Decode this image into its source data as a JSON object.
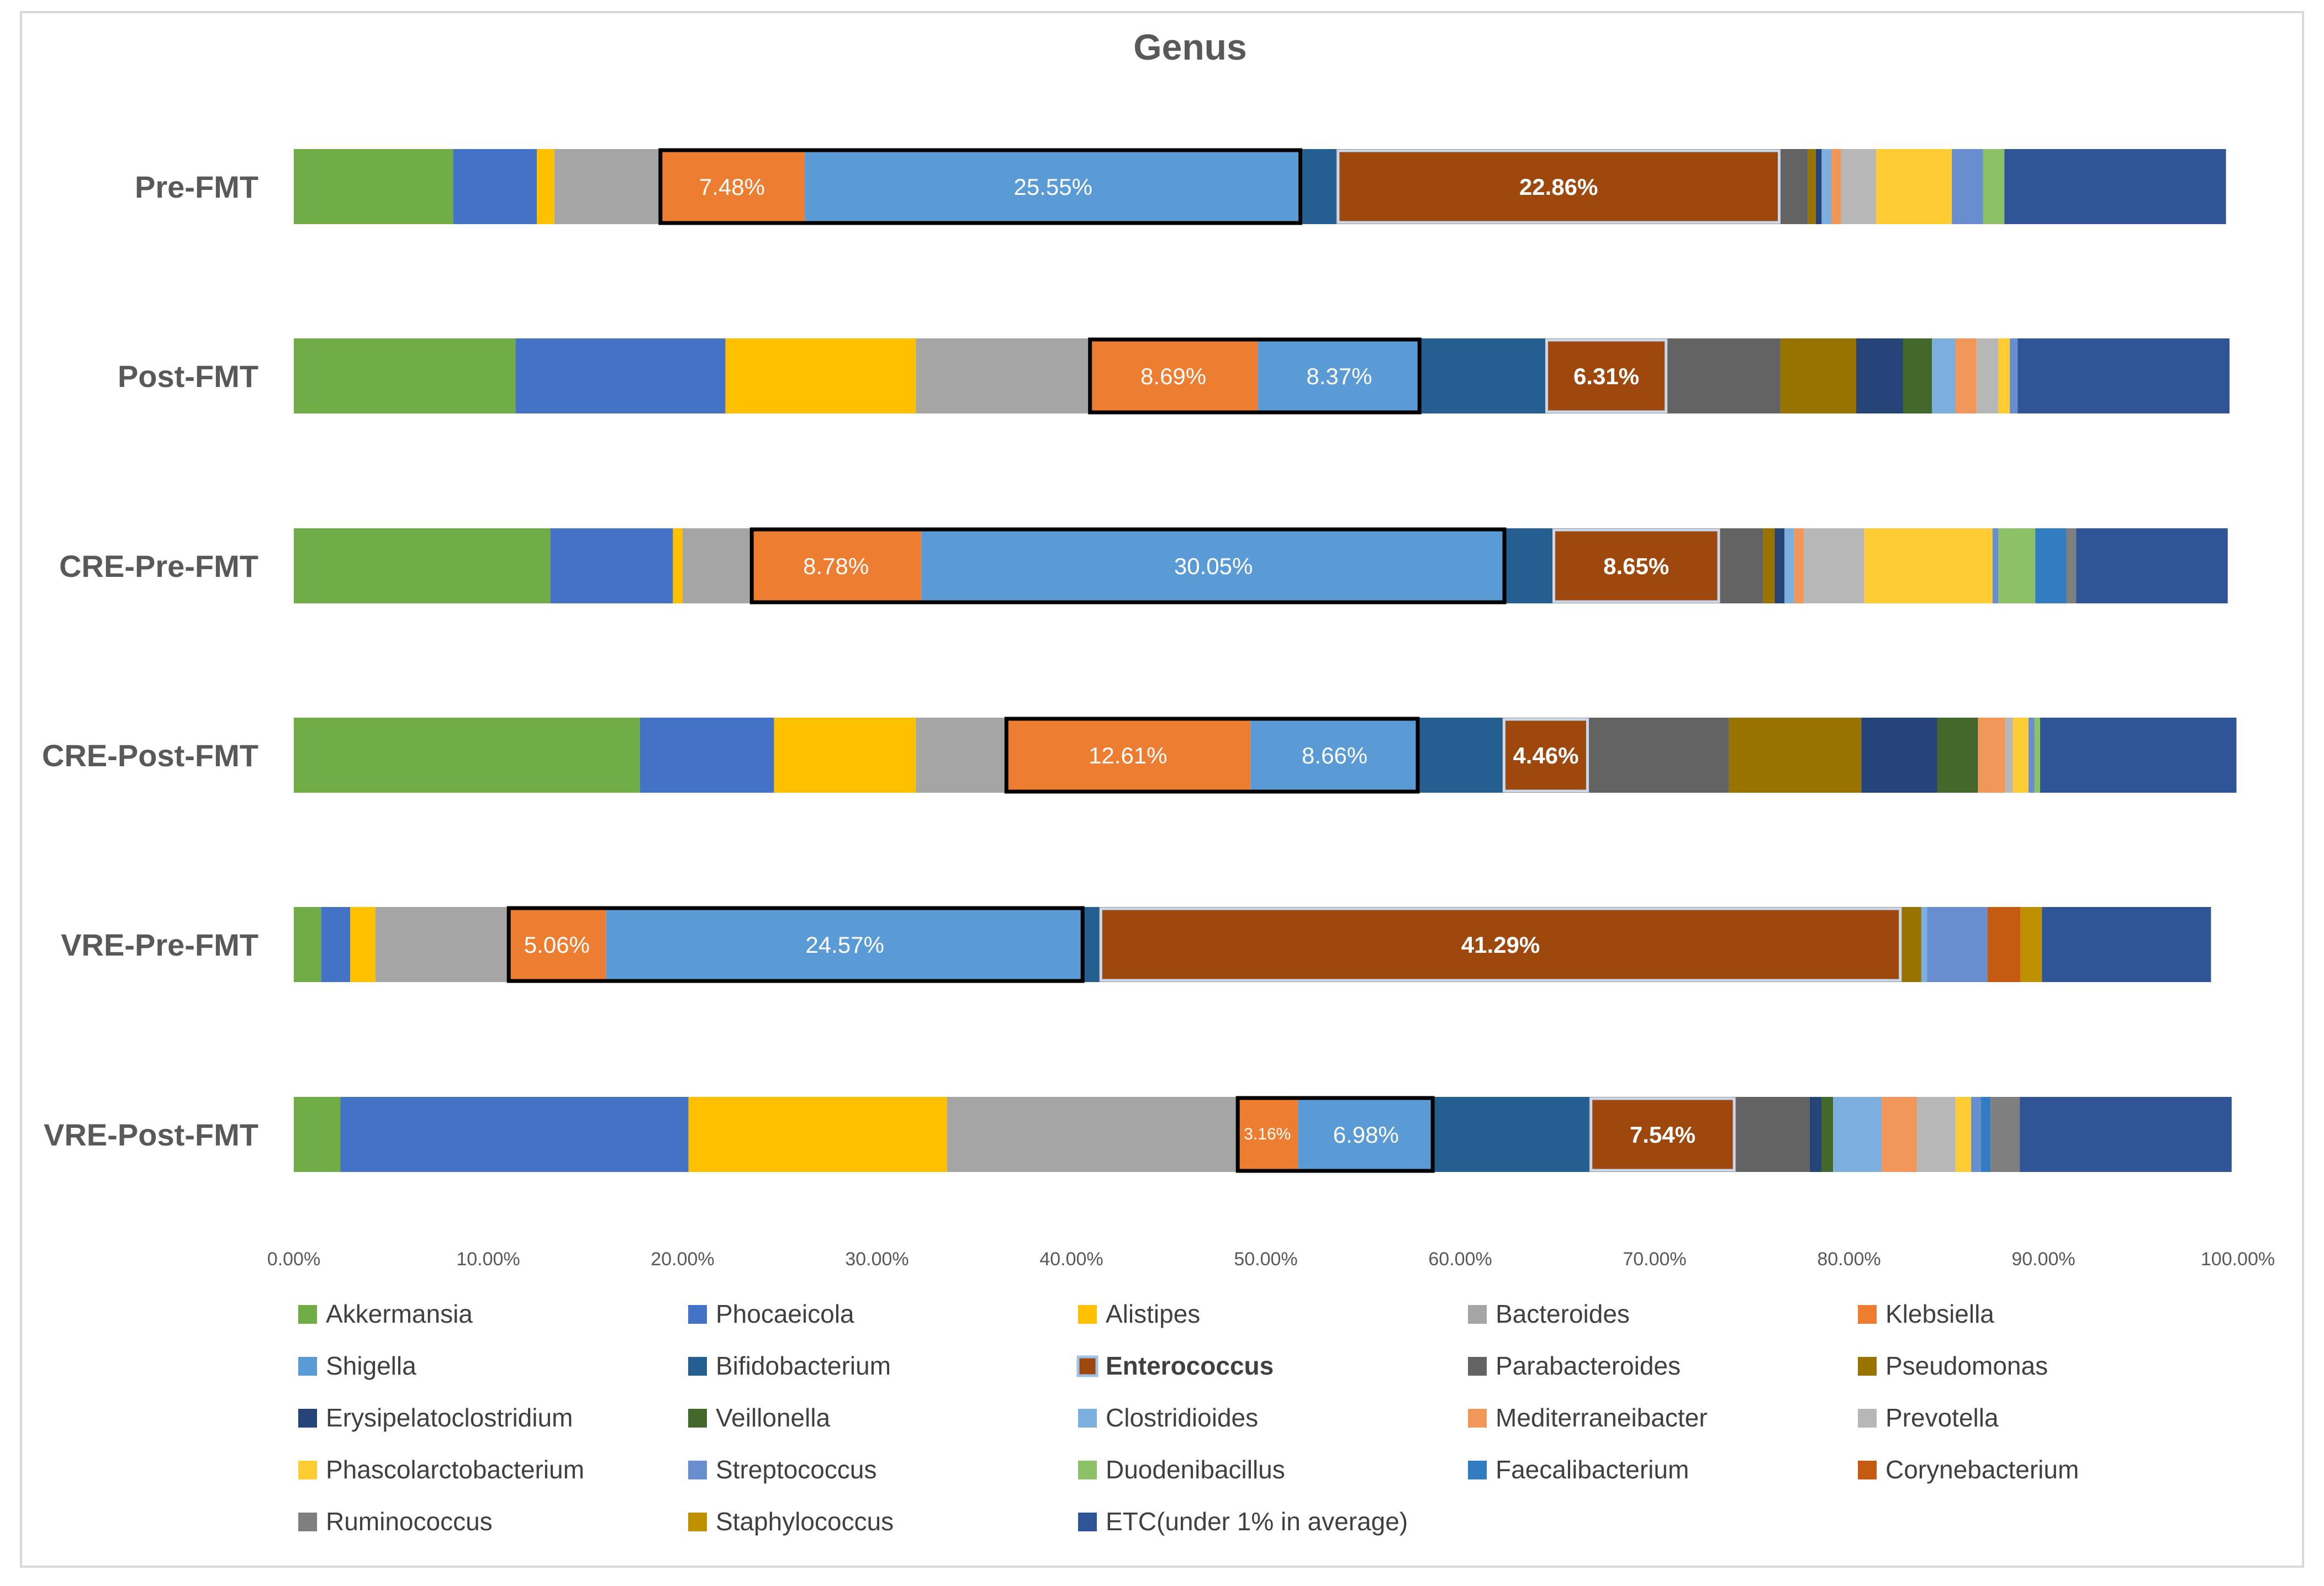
{
  "chart_data": {
    "type": "bar",
    "orientation": "horizontal",
    "stacked": true,
    "normalized": true,
    "title": "Genus",
    "xlabel": "",
    "ylabel": "",
    "xlim": [
      0,
      100
    ],
    "x_ticks": [
      "0.00%",
      "10.00%",
      "20.00%",
      "30.00%",
      "40.00%",
      "50.00%",
      "60.00%",
      "70.00%",
      "80.00%",
      "90.00%",
      "100.00%"
    ],
    "legend_position": "bottom",
    "highlighted_legend_entry": "Enterococcus",
    "categories": [
      "Pre-FMT",
      "Post-FMT",
      "CRE-Pre-FMT",
      "CRE-Post-FMT",
      "VRE-Pre-FMT",
      "VRE-Post-FMT"
    ],
    "series": [
      {
        "name": "Akkermansia",
        "color": "#70AD47",
        "values": [
          8.2,
          11.4,
          13.2,
          17.8,
          1.4,
          2.4
        ]
      },
      {
        "name": "Phocaeicola",
        "color": "#4472C4",
        "values": [
          4.3,
          10.8,
          6.3,
          6.9,
          1.5,
          17.9
        ]
      },
      {
        "name": "Alistipes",
        "color": "#FFC000",
        "values": [
          0.9,
          9.8,
          0.5,
          7.3,
          1.3,
          13.3
        ]
      },
      {
        "name": "Bacteroides",
        "color": "#A5A5A5",
        "values": [
          5.4,
          8.9,
          3.5,
          4.6,
          6.8,
          14.9
        ]
      },
      {
        "name": "Klebsiella",
        "color": "#ED7D31",
        "values": [
          7.48,
          8.69,
          8.78,
          12.61,
          5.06,
          3.16
        ]
      },
      {
        "name": "Shigella",
        "color": "#5B9BD5",
        "values": [
          25.55,
          8.37,
          30.05,
          8.66,
          24.57,
          6.98
        ]
      },
      {
        "name": "Bifidobacterium",
        "color": "#255E91",
        "values": [
          1.8,
          6.4,
          2.4,
          4.3,
          0.8,
          8.0
        ]
      },
      {
        "name": "Enterococcus",
        "color": "#9E480E",
        "values": [
          22.86,
          6.31,
          8.65,
          4.46,
          41.29,
          7.54
        ]
      },
      {
        "name": "Parabacteroides",
        "color": "#636363",
        "values": [
          1.4,
          5.8,
          2.2,
          7.2,
          0.0,
          3.8
        ]
      },
      {
        "name": "Pseudomonas",
        "color": "#997300",
        "values": [
          0.4,
          3.9,
          0.6,
          6.8,
          1.0,
          0.0
        ]
      },
      {
        "name": "Erysipelatoclostridium",
        "color": "#264478",
        "values": [
          0.3,
          2.4,
          0.5,
          3.9,
          0.0,
          0.6
        ]
      },
      {
        "name": "Veillonella",
        "color": "#43682B",
        "values": [
          0.0,
          1.5,
          0.0,
          2.1,
          0.0,
          0.6
        ]
      },
      {
        "name": "Clostridioides",
        "color": "#7CAFDD",
        "values": [
          0.5,
          1.2,
          0.5,
          0.0,
          0.3,
          2.5
        ]
      },
      {
        "name": "Mediterraneibacter",
        "color": "#F1975A",
        "values": [
          0.5,
          1.1,
          0.5,
          1.4,
          0.0,
          1.8
        ]
      },
      {
        "name": "Prevotella",
        "color": "#B7B7B7",
        "values": [
          1.8,
          1.1,
          3.1,
          0.4,
          0.0,
          2.0
        ]
      },
      {
        "name": "Phascolarctobacterium",
        "color": "#FFCD33",
        "values": [
          3.9,
          0.6,
          6.6,
          0.8,
          0.0,
          0.8
        ]
      },
      {
        "name": "Streptococcus",
        "color": "#698ED0",
        "values": [
          1.6,
          0.4,
          0.3,
          0.3,
          3.1,
          0.5
        ]
      },
      {
        "name": "Duodenibacillus",
        "color": "#8CC168",
        "values": [
          1.1,
          0.0,
          1.9,
          0.3,
          0.0,
          0.0
        ]
      },
      {
        "name": "Faecalibacterium",
        "color": "#327DC2",
        "values": [
          0.0,
          0.0,
          1.6,
          0.0,
          0.0,
          0.5
        ]
      },
      {
        "name": "Corynebacterium",
        "color": "#C55A11",
        "values": [
          0.0,
          0.0,
          0.0,
          0.0,
          1.7,
          0.0
        ]
      },
      {
        "name": "Ruminococcus",
        "color": "#7F7F7F",
        "values": [
          0.0,
          0.0,
          0.5,
          0.0,
          0.0,
          1.5
        ]
      },
      {
        "name": "Staphylococcus",
        "color": "#BF9000",
        "values": [
          0.0,
          0.0,
          0.0,
          0.0,
          1.1,
          0.0
        ]
      },
      {
        "name": "ETC(under 1% in average)",
        "color": "#2F5597",
        "values": [
          11.4,
          10.9,
          7.8,
          10.1,
          8.7,
          10.9
        ]
      }
    ]
  }
}
